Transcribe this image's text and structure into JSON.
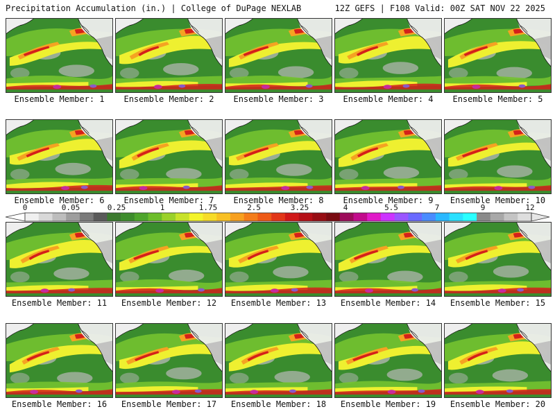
{
  "header": {
    "title": "Precipitation Accumulation (in.) | College of DuPage NEXLAB",
    "run": "12Z GEFS | F108 Valid: 00Z SAT NOV 22 2025"
  },
  "panels": [
    {
      "label": "Ensemble Member: 1"
    },
    {
      "label": "Ensemble Member: 2"
    },
    {
      "label": "Ensemble Member: 3"
    },
    {
      "label": "Ensemble Member: 4"
    },
    {
      "label": "Ensemble Member: 5"
    },
    {
      "label": "Ensemble Member: 6"
    },
    {
      "label": "Ensemble Member: 7"
    },
    {
      "label": "Ensemble Member: 8"
    },
    {
      "label": "Ensemble Member: 9"
    },
    {
      "label": "Ensemble Member: 10"
    },
    {
      "label": "Ensemble Member: 11"
    },
    {
      "label": "Ensemble Member: 12"
    },
    {
      "label": "Ensemble Member: 13"
    },
    {
      "label": "Ensemble Member: 14"
    },
    {
      "label": "Ensemble Member: 15"
    },
    {
      "label": "Ensemble Member: 16"
    },
    {
      "label": "Ensemble Member: 17"
    },
    {
      "label": "Ensemble Member: 18"
    },
    {
      "label": "Ensemble Member: 19"
    },
    {
      "label": "Ensemble Member: 20"
    }
  ],
  "colorbar": {
    "tick_labels": [
      "0",
      "0.05",
      "0.25",
      "1",
      "1.75",
      "2.5",
      "3.25",
      "4",
      "5.5",
      "7",
      "9",
      "12"
    ],
    "colors": [
      "#f0f0f0",
      "#d9d9d9",
      "#bdbdbd",
      "#9e9e9e",
      "#7b7b7b",
      "#5a5a5a",
      "#3b7a2e",
      "#3d8c2c",
      "#4ea52c",
      "#6cbd2a",
      "#9ad12a",
      "#c8e22a",
      "#f4f42a",
      "#f7dc28",
      "#f8c024",
      "#f7a01f",
      "#f47c1a",
      "#ee5a17",
      "#e23618",
      "#d01818",
      "#b50f16",
      "#970d14",
      "#7a0a12",
      "#9c0a5a",
      "#c20a8c",
      "#e01ac8",
      "#cc33ff",
      "#9a55ff",
      "#6a6aff",
      "#4a8cff",
      "#2ab8ff",
      "#2ae0ff",
      "#2affff",
      "#8a8a8a",
      "#a8a8a8",
      "#c4c4c4",
      "#dedede"
    ]
  },
  "map_colors": {
    "ocean_green": "#3a8c2e",
    "light_green": "#74c230",
    "yellow": "#eef030",
    "orange": "#f5a322",
    "red": "#d4201a",
    "magenta": "#c82a9c",
    "purple": "#8a5ac8",
    "gray_dry": "#b8b8b8",
    "white_dry": "#eeeeee"
  }
}
